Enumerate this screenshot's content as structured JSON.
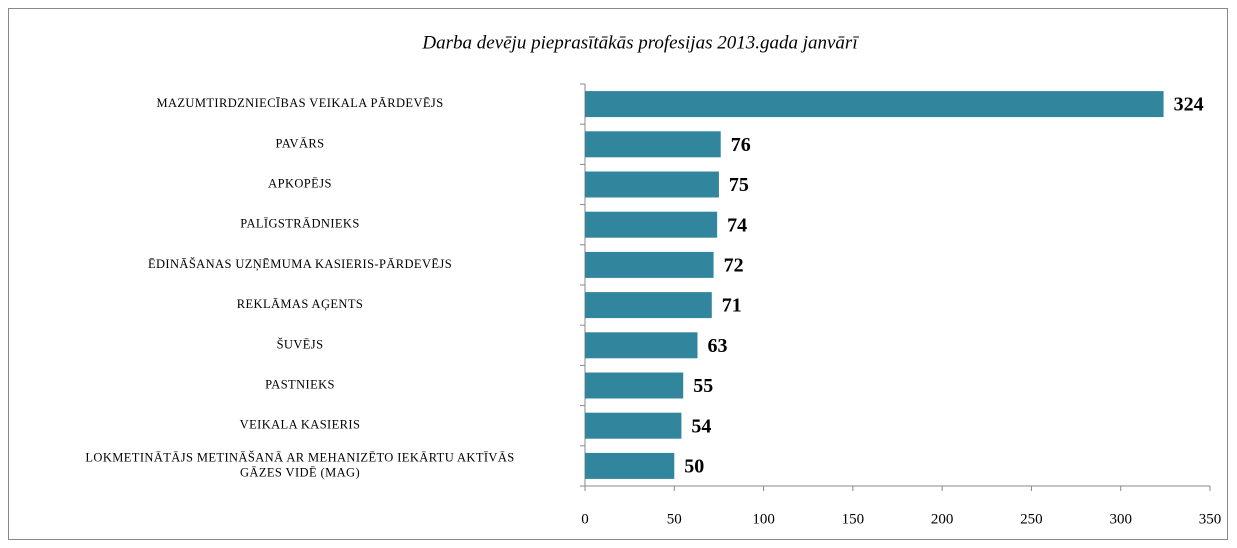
{
  "chart_data": {
    "type": "bar",
    "orientation": "horizontal",
    "title": "Darba devēju pieprasītākās profesijas 2013.gada janvārī",
    "categories": [
      "MAZUMTIRDZNIECĪBAS VEIKALA PĀRDEVĒJS",
      "PAVĀRS",
      "APKOPĒJS",
      "PALĪGSTRĀDNIEKS",
      "ĒDINĀŠANAS UZŅĒMUMA KASIERIS-PĀRDEVĒJS",
      "REKLĀMAS AĢENTS",
      "ŠUVĒJS",
      "PASTNIEKS",
      "VEIKALA KASIERIS",
      "LOKMETINĀTĀJS METINĀŠANĀ AR MEHANIZĒTO IEKĀRTU AKTĪVĀS GĀZES VIDĒ (MAG)"
    ],
    "values": [
      324,
      76,
      75,
      74,
      72,
      71,
      63,
      55,
      54,
      50
    ],
    "color": "#31859c",
    "xlim": [
      0,
      350
    ],
    "xticks": [
      0,
      50,
      100,
      150,
      200,
      250,
      300,
      350
    ],
    "grid": false
  }
}
